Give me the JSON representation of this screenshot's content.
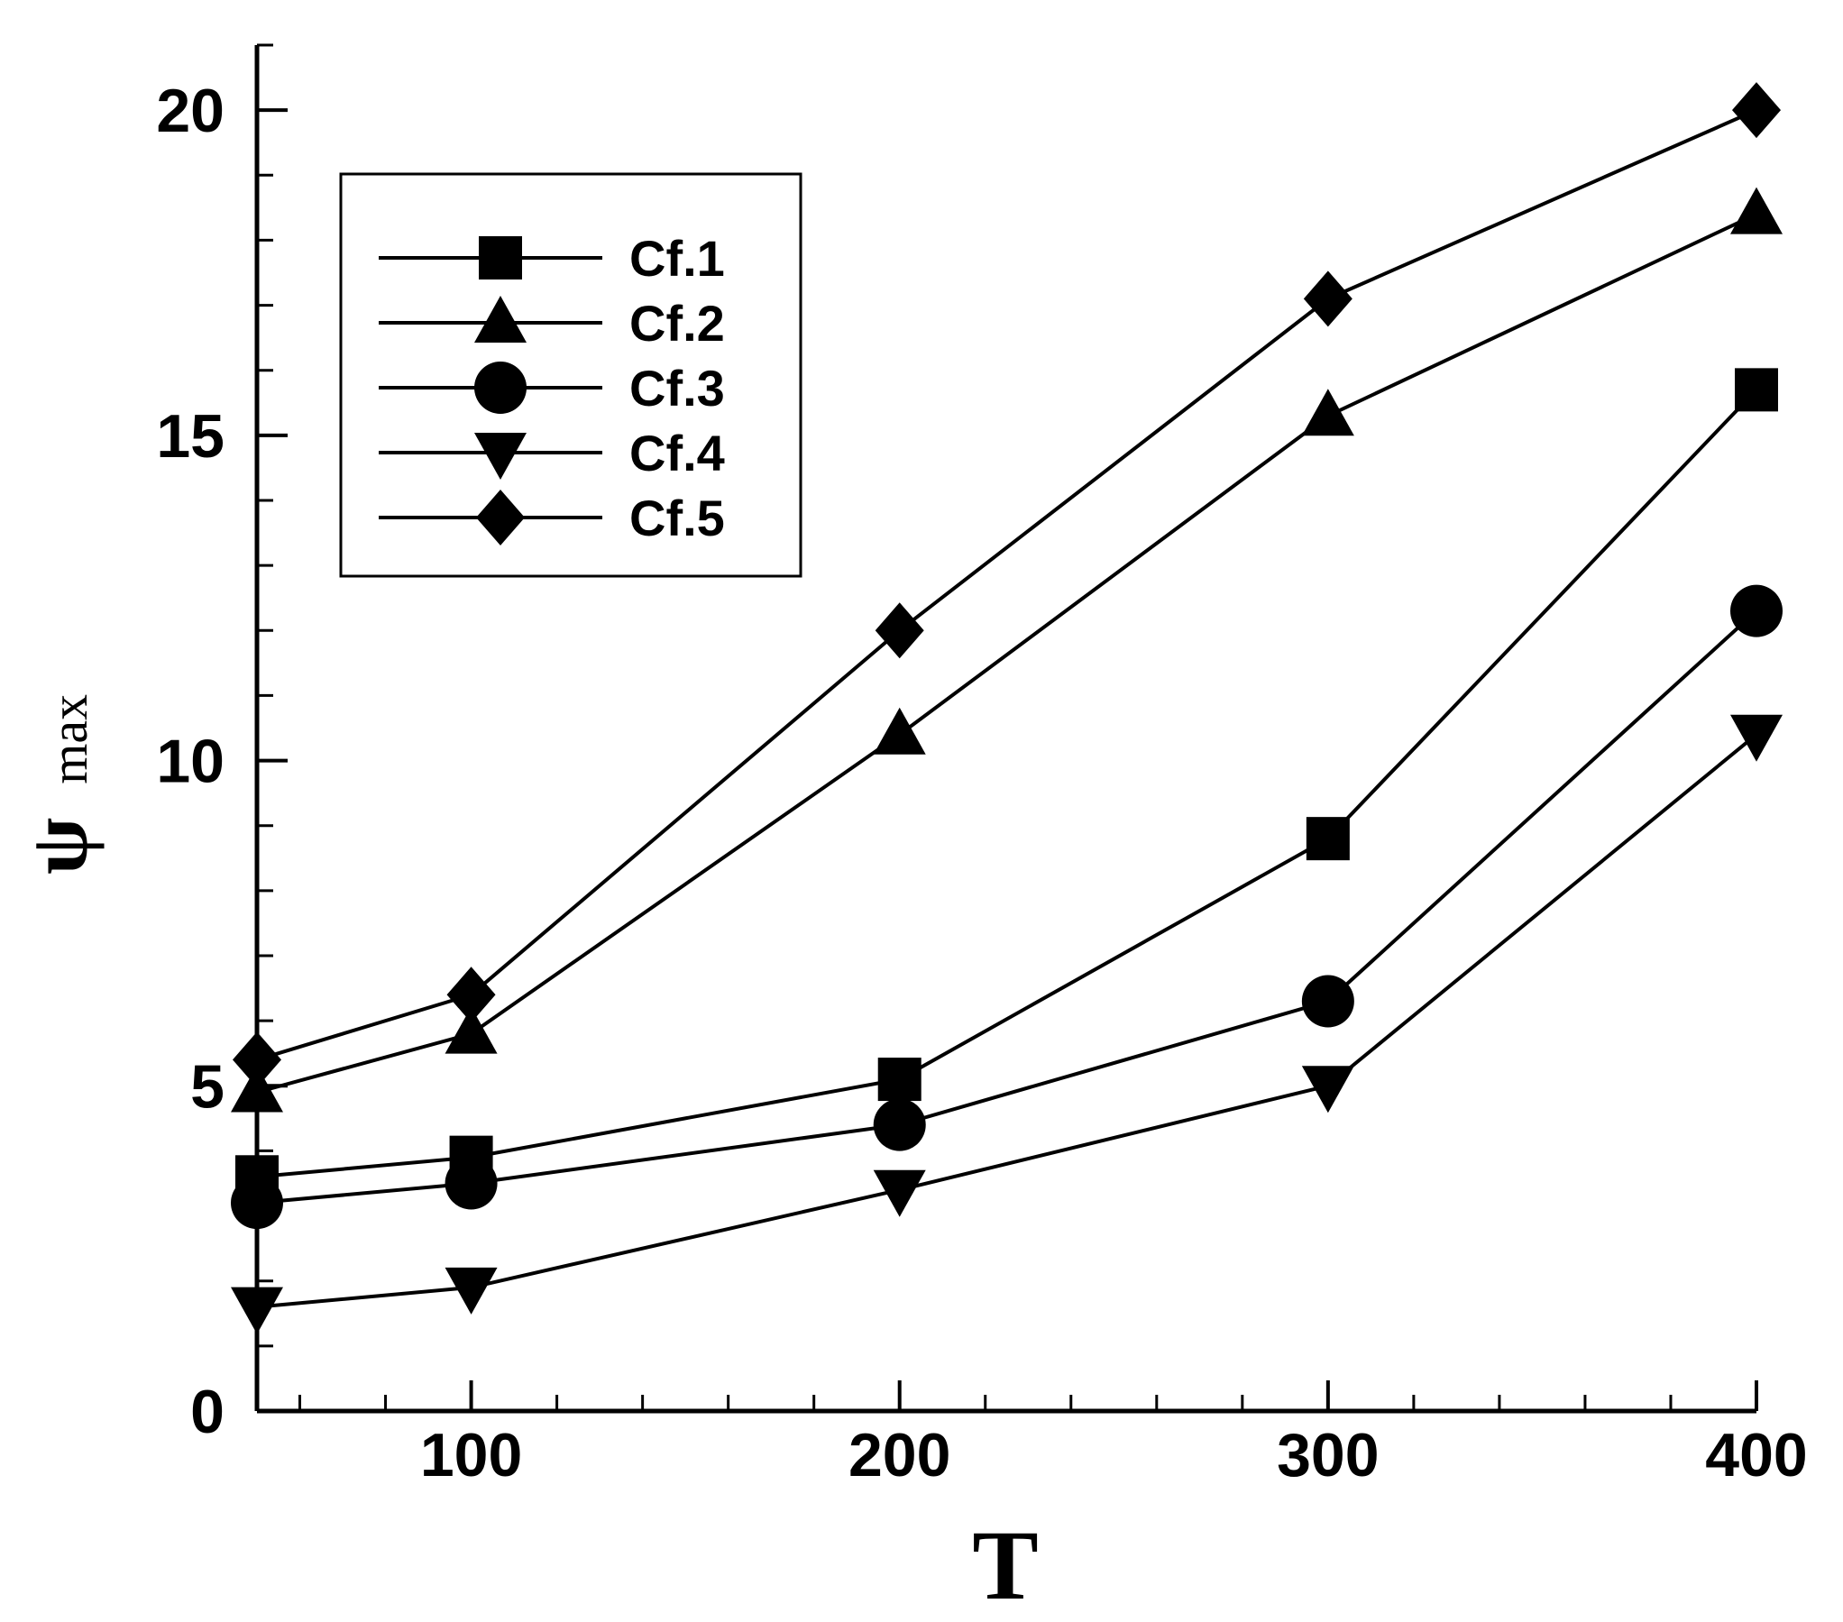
{
  "chart_data": {
    "type": "line",
    "xlabel": "T",
    "ylabel": "ψ",
    "ylabel_subscript": "max",
    "x": [
      50,
      100,
      200,
      300,
      400
    ],
    "xlim": [
      50,
      400
    ],
    "ylim": [
      0,
      21
    ],
    "xticks": [
      100,
      200,
      300,
      400
    ],
    "yticks": [
      0,
      5,
      10,
      15,
      20
    ],
    "grid": false,
    "legend_position": "top-left",
    "series": [
      {
        "name": "Cf.1",
        "marker": "square",
        "values": [
          3.6,
          3.9,
          5.1,
          8.8,
          15.7
        ]
      },
      {
        "name": "Cf.2",
        "marker": "triangle-up",
        "values": [
          4.9,
          5.8,
          10.4,
          15.3,
          18.4
        ]
      },
      {
        "name": "Cf.3",
        "marker": "circle",
        "values": [
          3.2,
          3.5,
          4.4,
          6.3,
          12.3
        ]
      },
      {
        "name": "Cf.4",
        "marker": "triangle-down",
        "values": [
          1.6,
          1.9,
          3.4,
          5.0,
          10.4
        ]
      },
      {
        "name": "Cf.5",
        "marker": "diamond",
        "values": [
          5.4,
          6.4,
          12.0,
          17.1,
          20.0
        ]
      }
    ]
  }
}
